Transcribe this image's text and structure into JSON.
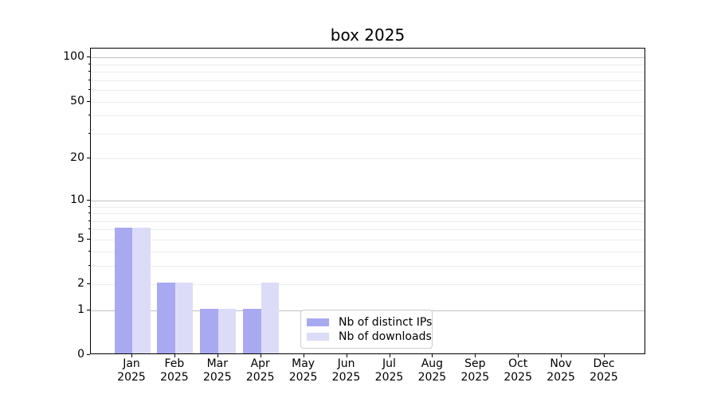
{
  "chart_data": {
    "type": "bar",
    "title": "box 2025",
    "categories": [
      "Jan",
      "Feb",
      "Mar",
      "Apr",
      "May",
      "Jun",
      "Jul",
      "Aug",
      "Sep",
      "Oct",
      "Nov",
      "Dec"
    ],
    "x_sublabel": "2025",
    "series": [
      {
        "name": "Nb of distinct IPs",
        "color": "#a9a9f1",
        "values": [
          6,
          2,
          1,
          1,
          0,
          0,
          0,
          0,
          0,
          0,
          0,
          0
        ]
      },
      {
        "name": "Nb of downloads",
        "color": "#dcdcf8",
        "values": [
          6,
          2,
          1,
          2,
          0,
          0,
          0,
          0,
          0,
          0,
          0,
          0
        ]
      }
    ],
    "yscale": "log1p",
    "ylim": [
      0,
      115
    ],
    "y_ticks": [
      0,
      1,
      2,
      5,
      10,
      20,
      50,
      100
    ],
    "y_major_gridlines": [
      1,
      10,
      100
    ],
    "y_minor_gridlines": [
      2,
      3,
      4,
      5,
      6,
      7,
      8,
      9,
      20,
      30,
      40,
      50,
      60,
      70,
      80,
      90
    ],
    "grid": true,
    "legend_position": "lower center",
    "colors": {
      "axis": "#000000",
      "major_grid": "#c0c0c0",
      "minor_grid": "#ededed",
      "legend_border": "#cccccc",
      "text": "#000000"
    }
  }
}
